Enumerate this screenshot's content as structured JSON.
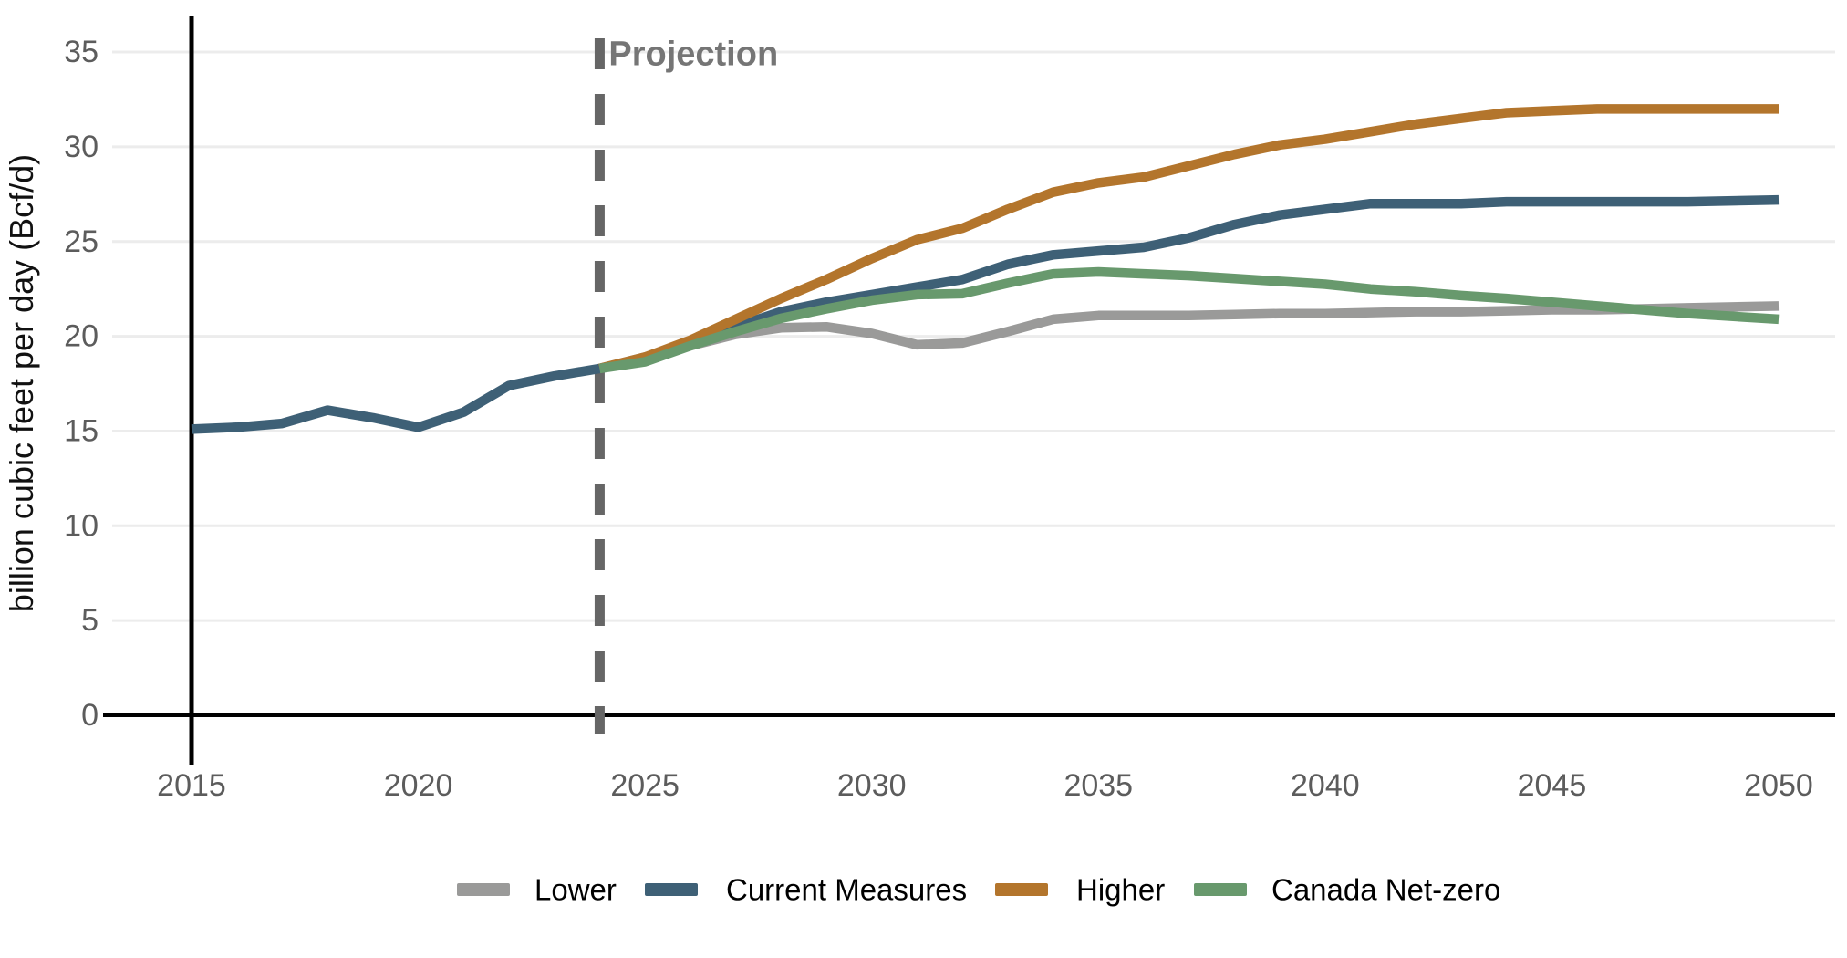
{
  "figure": {
    "ylabel": "billion cubic feet per day (Bcf/d)",
    "projection_label": "Projection",
    "colors": {
      "background": "#ffffff",
      "gridline": "#ececec",
      "axis_line": "#000000",
      "tick_label": "#5c5c5c",
      "axis_title": "#111111",
      "projection_text": "#757575",
      "projection_dash": "#666666",
      "legend_text": "#000000"
    }
  },
  "chart_data": {
    "type": "line",
    "title": "",
    "xlabel": "",
    "ylabel": "billion cubic feet per day (Bcf/d)",
    "x_ticks": [
      2015,
      2020,
      2025,
      2030,
      2035,
      2040,
      2045,
      2050
    ],
    "y_ticks": [
      0,
      5,
      10,
      15,
      20,
      25,
      30,
      35
    ],
    "xlim": [
      2013,
      2051.3
    ],
    "ylim": [
      0,
      36.5
    ],
    "grid": "horizontal",
    "legend_position": "bottom",
    "projection_divider_year": 2024,
    "annotations": [
      {
        "text": "Projection",
        "x": 2024.2,
        "y": 34.3
      }
    ],
    "x": [
      2015,
      2016,
      2017,
      2018,
      2019,
      2020,
      2021,
      2022,
      2023,
      2024,
      2025,
      2026,
      2027,
      2028,
      2029,
      2030,
      2031,
      2032,
      2033,
      2034,
      2035,
      2036,
      2037,
      2038,
      2039,
      2040,
      2041,
      2042,
      2043,
      2044,
      2045,
      2046,
      2047,
      2048,
      2049,
      2050
    ],
    "series": [
      {
        "name": "Lower",
        "color": "#9a9a99",
        "values": [
          null,
          null,
          null,
          null,
          null,
          null,
          null,
          null,
          null,
          18.3,
          18.9,
          19.5,
          20.1,
          20.45,
          20.5,
          20.15,
          19.55,
          19.65,
          20.25,
          20.9,
          21.1,
          21.1,
          21.1,
          21.15,
          21.2,
          21.2,
          21.25,
          21.3,
          21.3,
          21.35,
          21.4,
          21.4,
          21.45,
          21.5,
          21.55,
          21.6
        ]
      },
      {
        "name": "Current Measures",
        "color": "#3e6076",
        "values": [
          15.1,
          15.2,
          15.4,
          16.1,
          15.7,
          15.2,
          16.0,
          17.4,
          17.9,
          18.3,
          18.8,
          19.7,
          20.5,
          21.3,
          21.8,
          22.2,
          22.6,
          23.0,
          23.8,
          24.3,
          24.5,
          24.7,
          25.2,
          25.9,
          26.4,
          26.7,
          27.0,
          27.0,
          27.0,
          27.1,
          27.1,
          27.1,
          27.1,
          27.1,
          27.15,
          27.2
        ]
      },
      {
        "name": "Higher",
        "color": "#b3752c",
        "values": [
          null,
          null,
          null,
          null,
          null,
          null,
          null,
          null,
          null,
          18.3,
          18.9,
          19.8,
          20.9,
          22.0,
          23.0,
          24.1,
          25.1,
          25.7,
          26.7,
          27.6,
          28.1,
          28.4,
          29.0,
          29.6,
          30.1,
          30.4,
          30.8,
          31.2,
          31.5,
          31.8,
          31.9,
          32.0,
          32.0,
          32.0,
          32.0,
          32.0
        ]
      },
      {
        "name": "Canada Net-zero",
        "color": "#68996d",
        "values": [
          null,
          null,
          null,
          null,
          null,
          null,
          null,
          null,
          null,
          18.3,
          18.65,
          19.5,
          20.25,
          20.95,
          21.45,
          21.9,
          22.2,
          22.25,
          22.8,
          23.3,
          23.4,
          23.3,
          23.2,
          23.05,
          22.9,
          22.75,
          22.5,
          22.35,
          22.15,
          22.0,
          21.8,
          21.6,
          21.4,
          21.2,
          21.05,
          20.9
        ]
      }
    ]
  }
}
